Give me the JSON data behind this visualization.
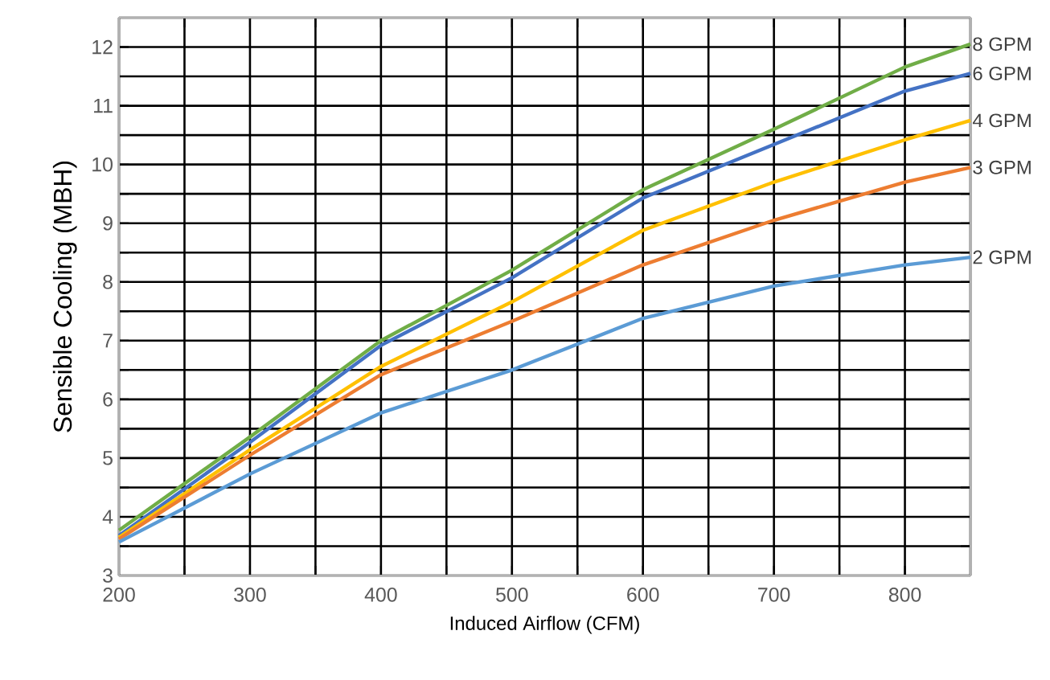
{
  "chart_data": {
    "type": "line",
    "xlabel": "Induced Airflow (CFM)",
    "ylabel": "Sensible Cooling (MBH)",
    "xlim": [
      200,
      850
    ],
    "ylim": [
      3,
      12.5
    ],
    "xticks": [
      200,
      {
        "value": 250,
        "label": null
      },
      300,
      {
        "value": 350,
        "label": null
      },
      400,
      {
        "value": 450,
        "label": null
      },
      500,
      {
        "value": 550,
        "label": null
      },
      600,
      {
        "value": 650,
        "label": null
      },
      700,
      {
        "value": 750,
        "label": null
      },
      800,
      {
        "value": 850,
        "label": null
      }
    ],
    "yticks": [
      3,
      {
        "value": 3.5,
        "label": null
      },
      4,
      {
        "value": 4.5,
        "label": null
      },
      5,
      {
        "value": 5.5,
        "label": null
      },
      6,
      {
        "value": 6.5,
        "label": null
      },
      7,
      {
        "value": 7.5,
        "label": null
      },
      8,
      {
        "value": 8.5,
        "label": null
      },
      9,
      {
        "value": 9.5,
        "label": null
      },
      10,
      {
        "value": 10.5,
        "label": null
      },
      11,
      {
        "value": 11.5,
        "label": null
      },
      12,
      {
        "value": 12.5,
        "label": null
      }
    ],
    "grid": true,
    "legend": false,
    "marker": "none",
    "line_style": "solid",
    "x": [
      200,
      300,
      400,
      500,
      600,
      700,
      800,
      850
    ],
    "series": [
      {
        "name": "8 GPM",
        "color": "#70ad47",
        "values": [
          3.77,
          5.36,
          7.0,
          8.2,
          9.57,
          10.6,
          11.66,
          12.05
        ]
      },
      {
        "name": "6 GPM",
        "color": "#4472c4",
        "values": [
          3.68,
          5.27,
          6.92,
          8.07,
          9.43,
          10.34,
          11.25,
          11.55
        ]
      },
      {
        "name": "4 GPM",
        "color": "#ffc000",
        "values": [
          3.65,
          5.14,
          6.56,
          7.66,
          8.88,
          9.7,
          10.42,
          10.75
        ]
      },
      {
        "name": "3 GPM",
        "color": "#ed7d31",
        "values": [
          3.62,
          5.05,
          6.42,
          7.33,
          8.29,
          9.05,
          9.7,
          9.95
        ]
      },
      {
        "name": "2 GPM",
        "color": "#5b9bd5",
        "values": [
          3.57,
          4.73,
          5.77,
          6.5,
          7.38,
          7.93,
          8.29,
          8.42
        ]
      }
    ]
  }
}
